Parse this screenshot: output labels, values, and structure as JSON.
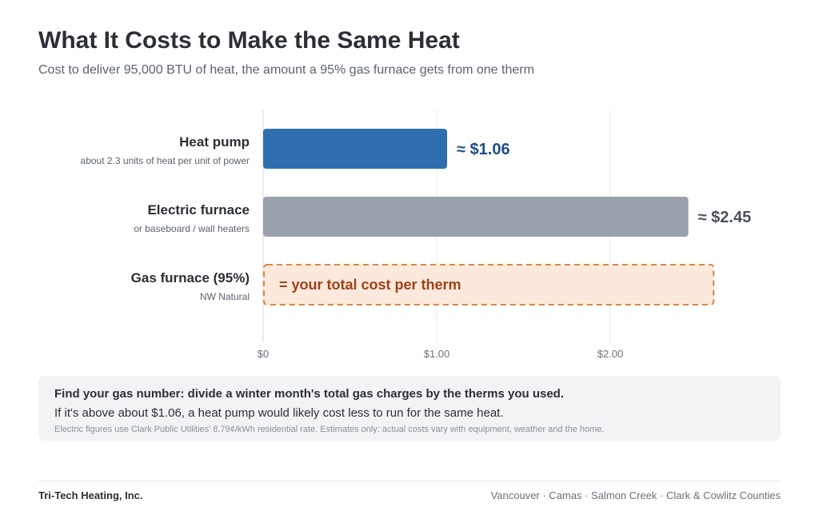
{
  "header": {
    "title": "What It Costs to Make the Same Heat",
    "subtitle": "Cost to deliver 95,000 BTU of heat, the amount a 95% gas furnace gets from one therm"
  },
  "chart_data": {
    "type": "bar",
    "orientation": "horizontal",
    "title": "What It Costs to Make the Same Heat",
    "subtitle": "Cost to deliver 95,000 BTU of heat, the amount a 95% gas furnace gets from one therm",
    "xlabel": "",
    "ylabel": "",
    "xlim": [
      0,
      2.75
    ],
    "grid": true,
    "categories": [
      "Heat pump",
      "Electric furnace",
      "Gas furnace (95%)"
    ],
    "category_notes": [
      "about 2.3 units of heat per unit of power",
      "or baseboard / wall heaters",
      "NW Natural"
    ],
    "values": [
      1.06,
      2.45,
      null
    ],
    "value_labels": [
      "≈ $1.06",
      "≈ $2.45",
      "= your total cost per therm"
    ],
    "colors": [
      "#2f6fb0",
      "#9aa1ac",
      "#fde9dc"
    ],
    "label_colors": [
      "#1f4e86",
      "#4a505b",
      "#a0401a"
    ],
    "placeholder_bar": {
      "index": 2,
      "border_color": "#e2833f",
      "extent": 2.6
    },
    "x_ticks": [
      {
        "value": 0,
        "label": "$0"
      },
      {
        "value": 1,
        "label": "$1.00"
      },
      {
        "value": 2,
        "label": "$2.00"
      }
    ]
  },
  "note": {
    "headline": "Find your gas number: divide a winter month's total gas charges by the therms you used.",
    "line": "If it's above about $1.06, a heat pump would likely cost less to run for the same heat.",
    "fineprint": "Electric figures use Clark Public Utilities' 8.79¢/kWh residential rate. Estimates only: actual costs vary with equipment, weather and the home."
  },
  "footer": {
    "company": "Tri-Tech Heating, Inc.",
    "areas": "Vancouver · Camas · Salmon Creek · Clark & Cowlitz Counties"
  }
}
